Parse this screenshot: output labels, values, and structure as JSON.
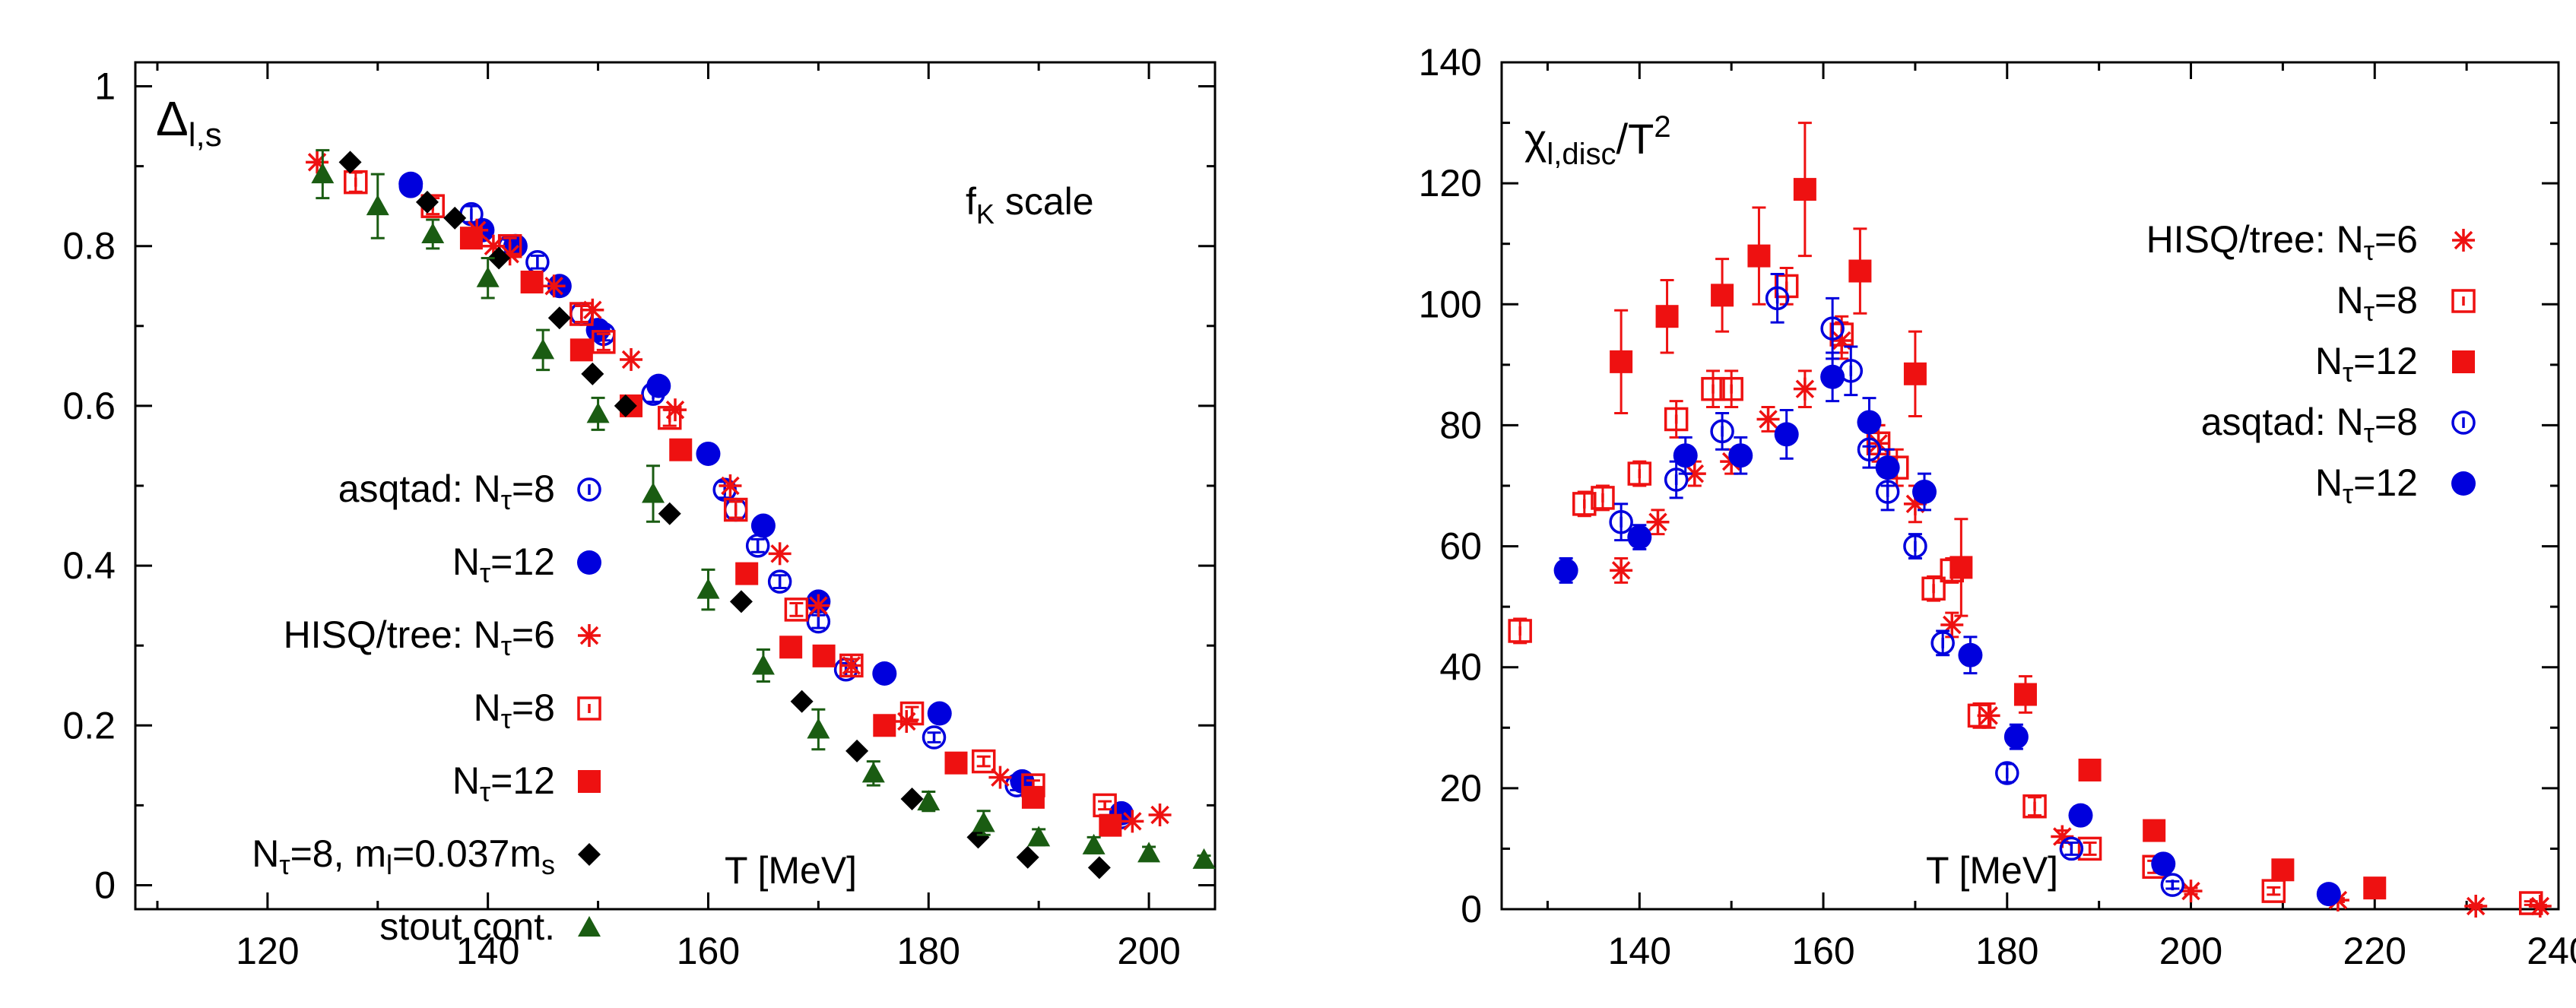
{
  "chart_data": [
    {
      "id": "left",
      "type": "scatter",
      "title_main": "Δ",
      "title_sub": "l,s",
      "annotation_main": "f",
      "annotation_sub": "K",
      "annotation_rest": " scale",
      "xlabel": "T [MeV]",
      "xlim": [
        108,
        206
      ],
      "ylim": [
        -0.03,
        1.03
      ],
      "xticks": [
        120,
        140,
        160,
        180,
        200
      ],
      "xminor": [
        110,
        130,
        150,
        170,
        190
      ],
      "yticks": [
        0,
        0.2,
        0.4,
        0.6,
        0.8,
        1
      ],
      "ytick_labels": [
        "0",
        "0.2",
        "0.4",
        "0.6",
        "0.8",
        "1"
      ],
      "series": [
        {
          "key": "asq8",
          "group": "asqtad:",
          "label_main": "N",
          "label_sub": "τ",
          "label_rest": "=8",
          "color": "#0000dd",
          "marker": "open-circle",
          "x": [
            133,
            138.5,
            142,
            144.5,
            148.5,
            150.5,
            155,
            161.5,
            162.5,
            164.5,
            166.5,
            170,
            172.5,
            180.5,
            188,
            197.5
          ],
          "y": [
            0.875,
            0.84,
            0.8,
            0.78,
            0.715,
            0.69,
            0.615,
            0.495,
            0.47,
            0.425,
            0.38,
            0.33,
            0.27,
            0.185,
            0.125,
            0.085
          ],
          "err": [
            0,
            0.01,
            0.008,
            0.008,
            0.01,
            0.008,
            0.01,
            0.01,
            0.01,
            0.008,
            0.008,
            0.008,
            0.008,
            0.006,
            0.006,
            0.004
          ]
        },
        {
          "key": "asq12",
          "group": "",
          "label_main": "N",
          "label_sub": "τ",
          "label_rest": "=12",
          "color": "#0000dd",
          "marker": "filled-circle",
          "x": [
            133,
            139.5,
            142.5,
            146.5,
            150,
            155.5,
            160,
            165,
            170,
            176,
            181,
            188.5,
            197.5
          ],
          "y": [
            0.878,
            0.82,
            0.8,
            0.75,
            0.695,
            0.625,
            0.54,
            0.45,
            0.355,
            0.265,
            0.215,
            0.13,
            0.09
          ],
          "err": [
            0,
            0,
            0,
            0,
            0,
            0,
            0,
            0,
            0,
            0,
            0,
            0,
            0
          ]
        },
        {
          "key": "hisq6",
          "group": "HISQ/tree:",
          "label_main": "N",
          "label_sub": "τ",
          "label_rest": "=6",
          "color": "#ee1111",
          "marker": "star",
          "x": [
            124.5,
            139,
            140.5,
            142,
            146,
            149.5,
            153,
            157,
            162,
            166.5,
            170,
            173,
            178,
            186.5,
            198.5,
            201
          ],
          "y": [
            0.905,
            0.82,
            0.8,
            0.79,
            0.75,
            0.72,
            0.658,
            0.595,
            0.5,
            0.415,
            0.35,
            0.275,
            0.205,
            0.135,
            0.08,
            0.088
          ],
          "err": [
            0,
            0,
            0,
            0,
            0,
            0,
            0,
            0,
            0,
            0,
            0,
            0,
            0,
            0,
            0,
            0
          ]
        },
        {
          "key": "hisq8",
          "group": "",
          "label_main": "N",
          "label_sub": "τ",
          "label_rest": "=8",
          "color": "#ee1111",
          "marker": "open-square",
          "x": [
            128,
            135,
            142,
            148.5,
            150.5,
            156.5,
            162.5,
            168,
            173,
            178.5,
            185,
            189.5,
            196
          ],
          "y": [
            0.88,
            0.85,
            0.8,
            0.715,
            0.68,
            0.585,
            0.47,
            0.345,
            0.275,
            0.215,
            0.155,
            0.125,
            0.1
          ],
          "err": [
            0.012,
            0.01,
            0.01,
            0.01,
            0.01,
            0.01,
            0.01,
            0.008,
            0.008,
            0.008,
            0.006,
            0.006,
            0.005
          ]
        },
        {
          "key": "hisq12",
          "group": "",
          "label_main": "N",
          "label_sub": "τ",
          "label_rest": "=12",
          "color": "#ee1111",
          "marker": "filled-square",
          "x": [
            138.5,
            144,
            148.5,
            153,
            157.5,
            163.5,
            167.5,
            170.5,
            176,
            182.5,
            189.5,
            196.5
          ],
          "y": [
            0.81,
            0.755,
            0.67,
            0.6,
            0.545,
            0.39,
            0.298,
            0.287,
            0.2,
            0.153,
            0.11,
            0.075
          ],
          "err": [
            0,
            0,
            0,
            0,
            0,
            0,
            0,
            0,
            0,
            0,
            0,
            0
          ]
        },
        {
          "key": "ml037",
          "group": "",
          "label_main": "N",
          "label_sub": "τ",
          "label_rest": "=8, m",
          "label_sub2": "l",
          "label_rest2": "=0.037m",
          "label_sub3": "s",
          "color": "#000000",
          "marker": "diamond",
          "x": [
            127.5,
            134.5,
            137,
            141,
            146.5,
            149.5,
            152.5,
            156.5,
            163,
            168.5,
            173.5,
            178.5,
            184.5,
            189,
            195.5
          ],
          "y": [
            0.905,
            0.855,
            0.835,
            0.785,
            0.71,
            0.64,
            0.6,
            0.465,
            0.355,
            0.23,
            0.168,
            0.108,
            0.06,
            0.035,
            0.022
          ],
          "err": [
            0,
            0,
            0,
            0,
            0,
            0,
            0,
            0,
            0,
            0,
            0,
            0,
            0,
            0,
            0
          ]
        },
        {
          "key": "stout",
          "group": "",
          "label_main": "stout cont.",
          "color": "#1a5c12",
          "marker": "triangle",
          "x": [
            125,
            130,
            135,
            140,
            145,
            150,
            155,
            160,
            165,
            170,
            175,
            180,
            185,
            190,
            195,
            200,
            205
          ],
          "y": [
            0.89,
            0.85,
            0.815,
            0.76,
            0.67,
            0.59,
            0.49,
            0.37,
            0.275,
            0.195,
            0.14,
            0.105,
            0.078,
            0.06,
            0.05,
            0.04,
            0.032
          ],
          "err": [
            0.03,
            0.04,
            0.018,
            0.025,
            0.025,
            0.02,
            0.035,
            0.025,
            0.02,
            0.025,
            0.015,
            0.012,
            0.015,
            0.01,
            0.01,
            0.008,
            0.005
          ]
        }
      ]
    },
    {
      "id": "right",
      "type": "scatter",
      "title_main": "χ",
      "title_sub": "l,disc",
      "title_rest": "/T",
      "title_sup": "2",
      "xlabel": "T [MeV]",
      "xlim": [
        125,
        240
      ],
      "ylim": [
        0,
        140
      ],
      "xticks": [
        140,
        160,
        180,
        200,
        220,
        240
      ],
      "xminor": [
        130,
        150,
        170,
        190,
        210,
        230
      ],
      "yticks": [
        0,
        20,
        40,
        60,
        80,
        100,
        120,
        140
      ],
      "ytick_labels": [
        "0",
        "20",
        "40",
        "60",
        "80",
        "100",
        "120",
        "140"
      ],
      "series": [
        {
          "key": "hisq6",
          "group": "HISQ/tree:",
          "label_main": "N",
          "label_sub": "τ",
          "label_rest": "=6",
          "color": "#ee1111",
          "marker": "star",
          "x": [
            138,
            142,
            146,
            150,
            154,
            158,
            162,
            166,
            170,
            174,
            178,
            186,
            200,
            216,
            231,
            238
          ],
          "y": [
            56,
            64,
            72,
            74,
            81,
            86,
            94,
            77,
            67,
            47,
            32,
            12,
            3,
            1.5,
            0.5,
            0.5
          ],
          "err": [
            2,
            2,
            2,
            2,
            2,
            3,
            3,
            3,
            3,
            2,
            2,
            1,
            0.5,
            0.3,
            0.2,
            0.2
          ]
        },
        {
          "key": "hisq8",
          "group": "",
          "label_main": "N",
          "label_sub": "τ",
          "label_rest": "=8",
          "color": "#ee1111",
          "marker": "open-square",
          "x": [
            127,
            134,
            136,
            140,
            144,
            148,
            150,
            156,
            162,
            166,
            168,
            172,
            174,
            177,
            183,
            189,
            196,
            209,
            237
          ],
          "y": [
            46,
            67,
            68,
            72,
            81,
            86,
            86,
            103,
            95,
            77,
            73,
            53,
            56,
            32,
            17,
            10,
            7,
            3,
            1
          ],
          "err": [
            2,
            2,
            2,
            2,
            3,
            3,
            3,
            3,
            3,
            3,
            3,
            2,
            2,
            2,
            1.5,
            1,
            1,
            0.6,
            0.3
          ]
        },
        {
          "key": "hisq12",
          "group": "",
          "label_main": "N",
          "label_sub": "τ",
          "label_rest": "=12",
          "color": "#ee1111",
          "marker": "filled-square",
          "x": [
            138,
            143,
            149,
            153,
            158,
            164,
            170,
            175,
            182,
            189,
            196,
            210,
            220
          ],
          "y": [
            90.5,
            98,
            101.5,
            108,
            119,
            105.5,
            88.5,
            56.5,
            35.5,
            23,
            13,
            6.5,
            3.5
          ],
          "err": [
            8.5,
            6,
            6,
            8,
            11,
            7,
            7,
            8,
            3,
            1.5,
            0.8,
            0.6,
            0.4
          ]
        },
        {
          "key": "asq8",
          "group": "asqtad:",
          "label_main": "N",
          "label_sub": "τ",
          "label_rest": "=8",
          "color": "#0000dd",
          "marker": "open-circle",
          "x": [
            138,
            144,
            149,
            155,
            161,
            163,
            165,
            167,
            170,
            173,
            180,
            187,
            198
          ],
          "y": [
            64,
            71,
            79,
            101,
            96,
            89,
            76,
            69,
            60,
            44,
            22.5,
            10,
            4
          ],
          "err": [
            3,
            3,
            3,
            4,
            5,
            4,
            3,
            3,
            2,
            2,
            1.5,
            1,
            0.6
          ]
        },
        {
          "key": "asq12",
          "group": "",
          "label_main": "N",
          "label_sub": "τ",
          "label_rest": "=12",
          "color": "#0000dd",
          "marker": "filled-circle",
          "x": [
            132,
            140,
            145,
            151,
            156,
            161,
            165,
            167,
            171,
            176,
            181,
            188,
            197,
            215
          ],
          "y": [
            56,
            61.5,
            75,
            75,
            78.5,
            88,
            80.5,
            73,
            69,
            42,
            28.5,
            15.5,
            7.5,
            2.5
          ],
          "err": [
            2,
            2,
            3,
            3,
            4,
            4,
            4,
            3,
            3,
            3,
            2,
            1.5,
            0.8,
            0.3
          ]
        }
      ]
    }
  ]
}
